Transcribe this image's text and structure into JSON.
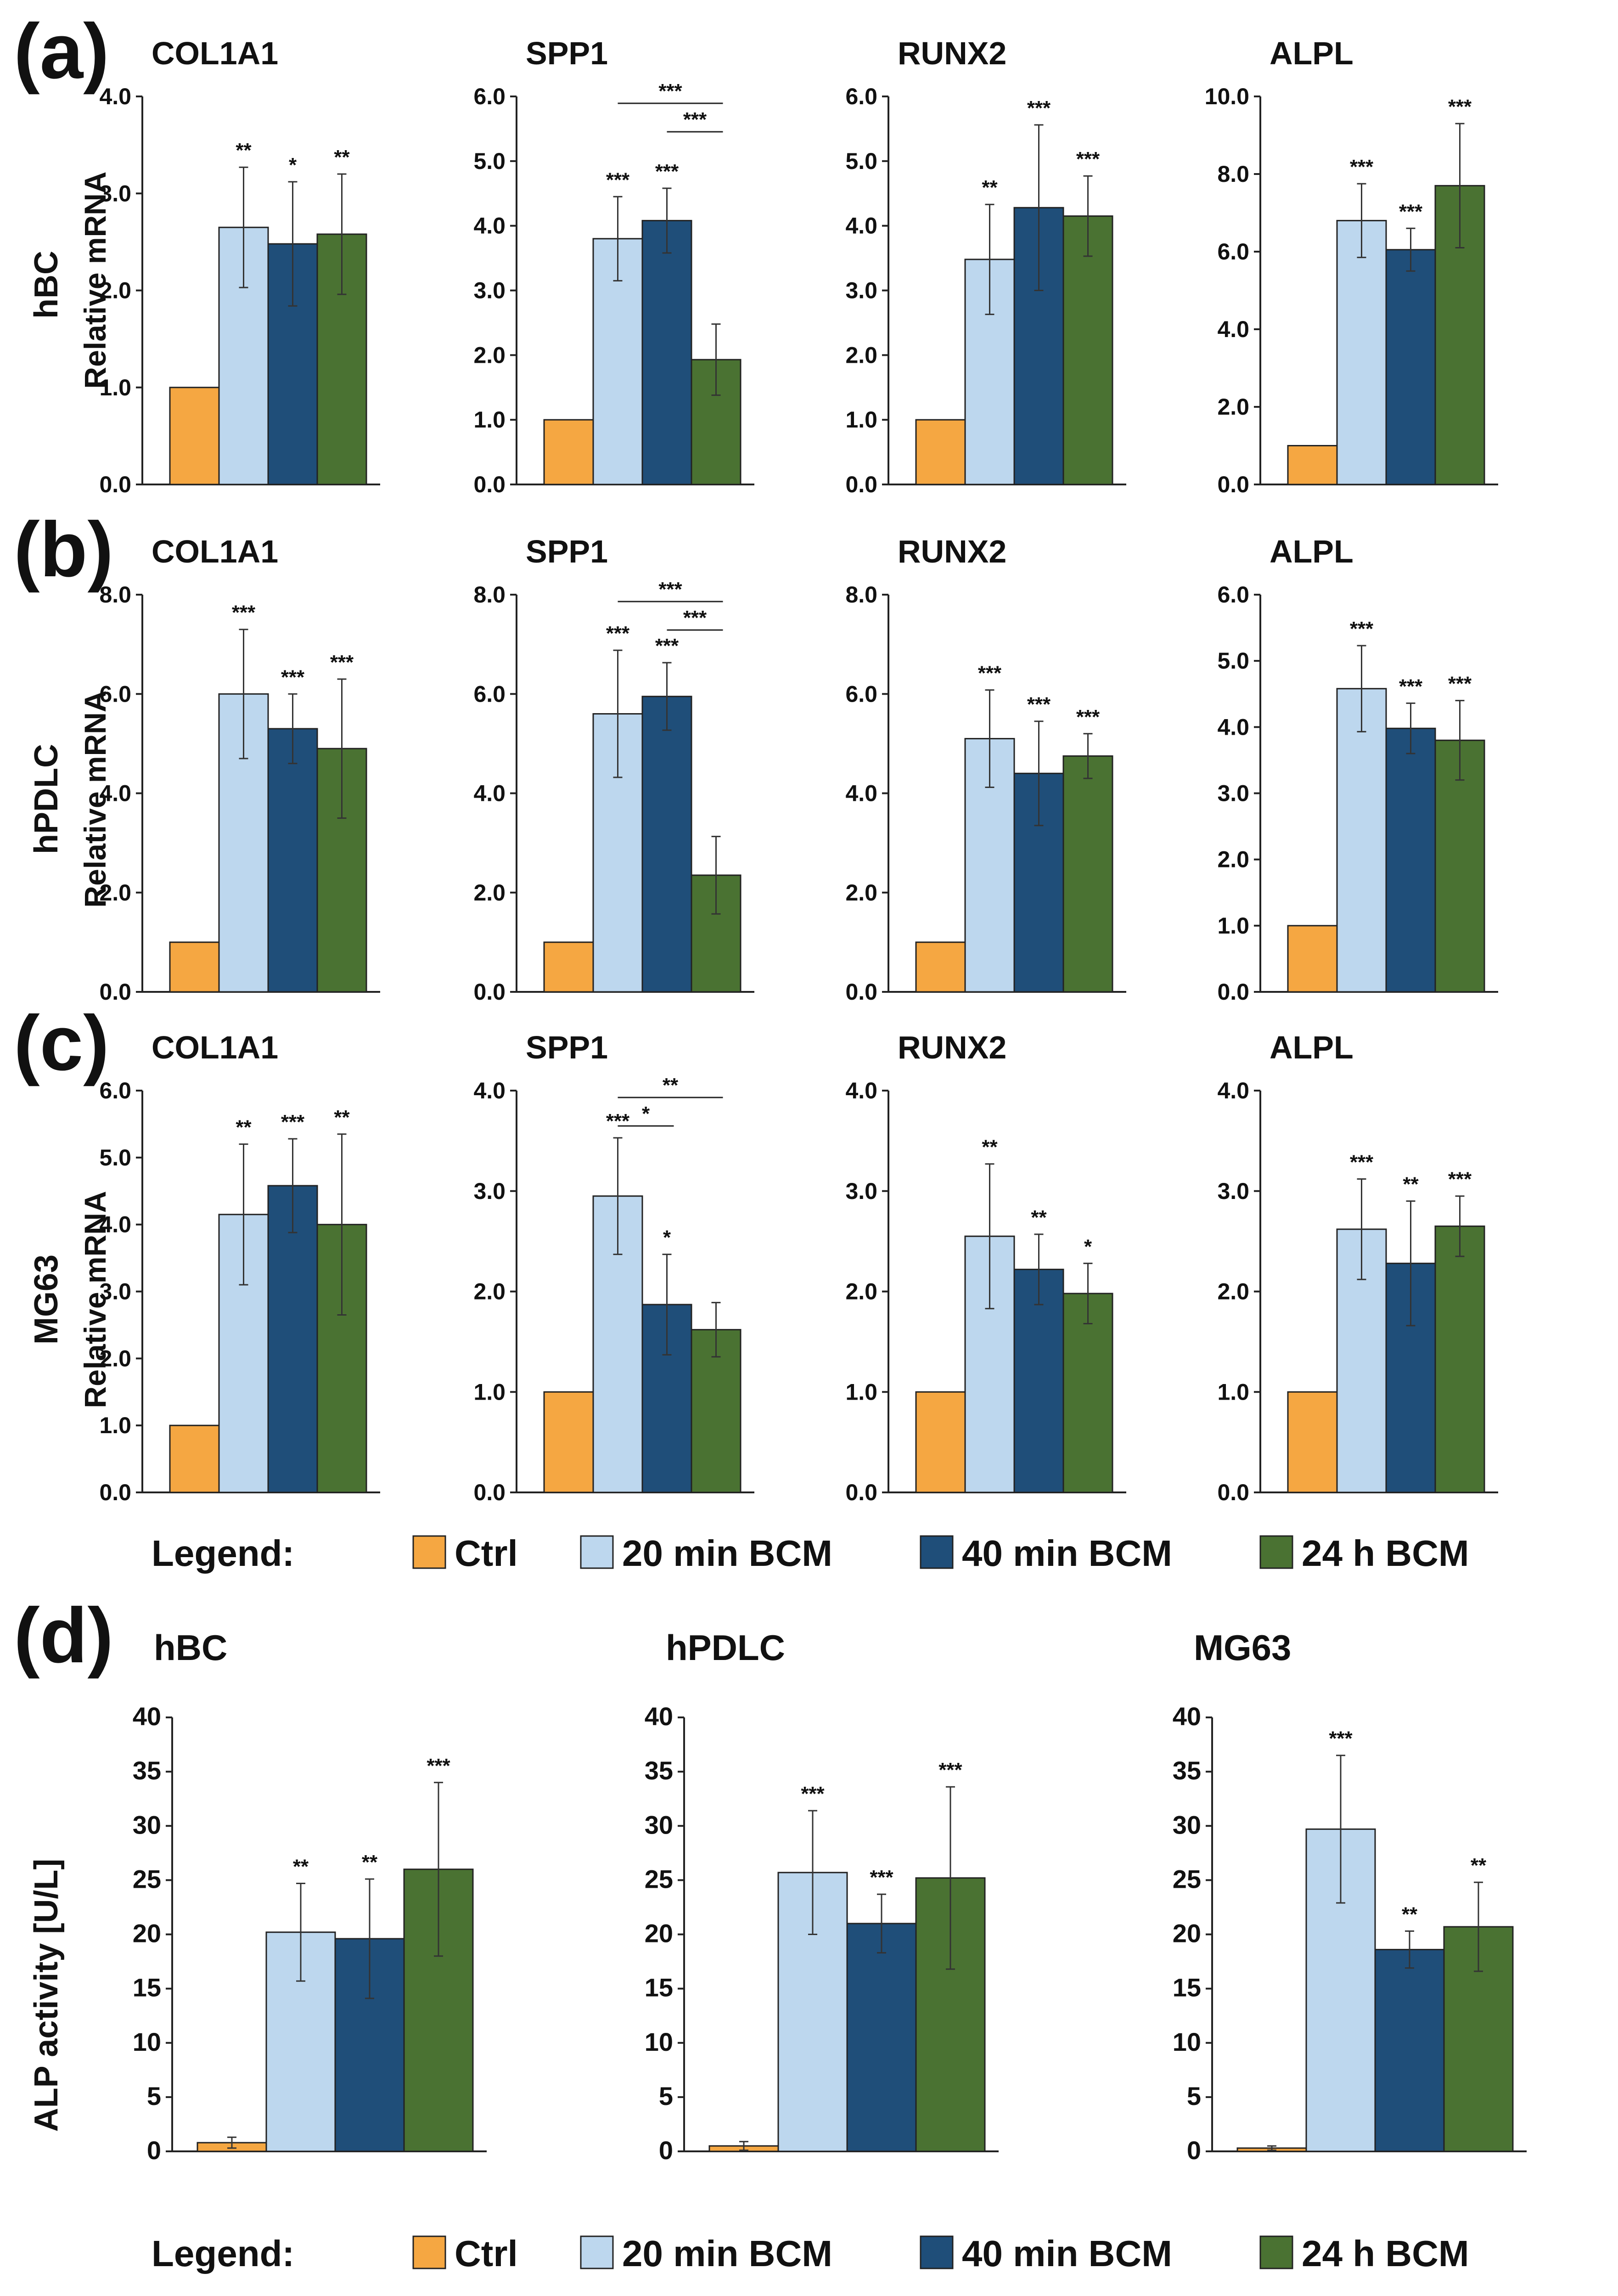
{
  "colors": {
    "Ctrl": "#f5a742",
    "20 min BCM": "#bdd7ee",
    "40 min BCM": "#1f4e79",
    "24 h BCM": "#4a7232",
    "axis": "#222222",
    "bar_edge": "#222222"
  },
  "panels": {
    "a": {
      "letter": "(a)",
      "cell_label": "hBC",
      "ylabel": "Relative mRNA"
    },
    "b": {
      "letter": "(b)",
      "cell_label": "hPDLC",
      "ylabel": "Relative mRNA"
    },
    "c": {
      "letter": "(c)",
      "cell_label": "MG63",
      "ylabel": "Relative mRNA"
    },
    "d": {
      "letter": "(d)",
      "ylabel": "ALP activity [U/L]"
    }
  },
  "legends": [
    {
      "title": "Legend:",
      "entries": [
        "Ctrl",
        "20 min BCM",
        "40 min BCM",
        "24 h BCM"
      ]
    },
    {
      "title": "Legend:",
      "entries": [
        "Ctrl",
        "20 min BCM",
        "40 min BCM",
        "24 h BCM"
      ]
    }
  ],
  "chart_data": [
    {
      "id": "a-col1a1",
      "panel": "a",
      "type": "bar",
      "title": "COL1A1",
      "ylabel": "Relative mRNA",
      "categories": [
        "Ctrl",
        "20 min BCM",
        "40 min BCM",
        "24 h BCM"
      ],
      "values": [
        1.0,
        2.65,
        2.48,
        2.58
      ],
      "errors": [
        0,
        0.62,
        0.64,
        0.62
      ],
      "significance": [
        "",
        "**",
        "*",
        "**"
      ],
      "brackets": [],
      "ylim": [
        0,
        4
      ],
      "ticks": [
        0,
        1,
        2,
        3,
        4
      ],
      "tick_labels": [
        "0.0",
        "1.0",
        "2.0",
        "3.0",
        "4.0"
      ]
    },
    {
      "id": "a-spp1",
      "panel": "a",
      "type": "bar",
      "title": "SPP1",
      "ylabel": "Relative mRNA",
      "categories": [
        "Ctrl",
        "20 min BCM",
        "40 min BCM",
        "24 h BCM"
      ],
      "values": [
        1.0,
        3.8,
        4.08,
        1.93
      ],
      "errors": [
        0,
        0.65,
        0.5,
        0.55
      ],
      "significance": [
        "",
        "***",
        "***",
        ""
      ],
      "brackets": [
        {
          "from": 1,
          "to": 3,
          "label": "***"
        },
        {
          "from": 2,
          "to": 3,
          "label": "***"
        }
      ],
      "ylim": [
        0,
        6
      ],
      "ticks": [
        0,
        1,
        2,
        3,
        4,
        5,
        6
      ],
      "tick_labels": [
        "0.0",
        "1.0",
        "2.0",
        "3.0",
        "4.0",
        "5.0",
        "6.0"
      ]
    },
    {
      "id": "a-runx2",
      "panel": "a",
      "type": "bar",
      "title": "RUNX2",
      "ylabel": "Relative mRNA",
      "categories": [
        "Ctrl",
        "20 min BCM",
        "40 min BCM",
        "24 h BCM"
      ],
      "values": [
        1.0,
        3.48,
        4.28,
        4.15
      ],
      "errors": [
        0,
        0.85,
        1.28,
        0.62
      ],
      "significance": [
        "",
        "**",
        "***",
        "***"
      ],
      "brackets": [],
      "ylim": [
        0,
        6
      ],
      "ticks": [
        0,
        1,
        2,
        3,
        4,
        5,
        6
      ],
      "tick_labels": [
        "0.0",
        "1.0",
        "2.0",
        "3.0",
        "4.0",
        "5.0",
        "6.0"
      ]
    },
    {
      "id": "a-alpl",
      "panel": "a",
      "type": "bar",
      "title": "ALPL",
      "ylabel": "Relative mRNA",
      "categories": [
        "Ctrl",
        "20 min BCM",
        "40 min BCM",
        "24 h BCM"
      ],
      "values": [
        1.0,
        6.8,
        6.05,
        7.7
      ],
      "errors": [
        0,
        0.95,
        0.55,
        1.6
      ],
      "significance": [
        "",
        "***",
        "***",
        "***"
      ],
      "brackets": [],
      "ylim": [
        0,
        10
      ],
      "ticks": [
        0,
        2,
        4,
        6,
        8,
        10
      ],
      "tick_labels": [
        "0.0",
        "2.0",
        "4.0",
        "6.0",
        "8.0",
        "10.0"
      ]
    },
    {
      "id": "b-col1a1",
      "panel": "b",
      "type": "bar",
      "title": "COL1A1",
      "ylabel": "Relative mRNA",
      "categories": [
        "Ctrl",
        "20 min BCM",
        "40 min BCM",
        "24 h BCM"
      ],
      "values": [
        1.0,
        6.0,
        5.3,
        4.9
      ],
      "errors": [
        0,
        1.3,
        0.7,
        1.4
      ],
      "significance": [
        "",
        "***",
        "***",
        "***"
      ],
      "brackets": [],
      "ylim": [
        0,
        8
      ],
      "ticks": [
        0,
        2,
        4,
        6,
        8
      ],
      "tick_labels": [
        "0.0",
        "2.0",
        "4.0",
        "6.0",
        "8.0"
      ]
    },
    {
      "id": "b-spp1",
      "panel": "b",
      "type": "bar",
      "title": "SPP1",
      "ylabel": "Relative mRNA",
      "categories": [
        "Ctrl",
        "20 min BCM",
        "40 min BCM",
        "24 h BCM"
      ],
      "values": [
        1.0,
        5.6,
        5.95,
        2.35
      ],
      "errors": [
        0,
        1.28,
        0.68,
        0.78
      ],
      "significance": [
        "",
        "***",
        "***",
        ""
      ],
      "brackets": [
        {
          "from": 1,
          "to": 3,
          "label": "***"
        },
        {
          "from": 2,
          "to": 3,
          "label": "***"
        }
      ],
      "ylim": [
        0,
        8
      ],
      "ticks": [
        0,
        2,
        4,
        6,
        8
      ],
      "tick_labels": [
        "0.0",
        "2.0",
        "4.0",
        "6.0",
        "8.0"
      ]
    },
    {
      "id": "b-runx2",
      "panel": "b",
      "type": "bar",
      "title": "RUNX2",
      "ylabel": "Relative mRNA",
      "categories": [
        "Ctrl",
        "20 min BCM",
        "40 min BCM",
        "24 h BCM"
      ],
      "values": [
        1.0,
        5.1,
        4.4,
        4.75
      ],
      "errors": [
        0,
        0.98,
        1.05,
        0.45
      ],
      "significance": [
        "",
        "***",
        "***",
        "***"
      ],
      "brackets": [],
      "ylim": [
        0,
        8
      ],
      "ticks": [
        0,
        2,
        4,
        6,
        8
      ],
      "tick_labels": [
        "0.0",
        "2.0",
        "4.0",
        "6.0",
        "8.0"
      ]
    },
    {
      "id": "b-alpl",
      "panel": "b",
      "type": "bar",
      "title": "ALPL",
      "ylabel": "Relative mRNA",
      "categories": [
        "Ctrl",
        "20 min BCM",
        "40 min BCM",
        "24 h BCM"
      ],
      "values": [
        1.0,
        4.58,
        3.98,
        3.8
      ],
      "errors": [
        0,
        0.65,
        0.38,
        0.6
      ],
      "significance": [
        "",
        "***",
        "***",
        "***"
      ],
      "brackets": [],
      "ylim": [
        0,
        6
      ],
      "ticks": [
        0,
        1,
        2,
        3,
        4,
        5,
        6
      ],
      "tick_labels": [
        "0.0",
        "1.0",
        "2.0",
        "3.0",
        "4.0",
        "5.0",
        "6.0"
      ]
    },
    {
      "id": "c-col1a1",
      "panel": "c",
      "type": "bar",
      "title": "COL1A1",
      "ylabel": "Relative mRNA",
      "categories": [
        "Ctrl",
        "20 min BCM",
        "40 min BCM",
        "24 h BCM"
      ],
      "values": [
        1.0,
        4.15,
        4.58,
        4.0
      ],
      "errors": [
        0,
        1.05,
        0.7,
        1.35
      ],
      "significance": [
        "",
        "**",
        "***",
        "**"
      ],
      "brackets": [],
      "ylim": [
        0,
        6
      ],
      "ticks": [
        0,
        1,
        2,
        3,
        4,
        5,
        6
      ],
      "tick_labels": [
        "0.0",
        "1.0",
        "2.0",
        "3.0",
        "4.0",
        "5.0",
        "6.0"
      ]
    },
    {
      "id": "c-spp1",
      "panel": "c",
      "type": "bar",
      "title": "SPP1",
      "ylabel": "Relative mRNA",
      "categories": [
        "Ctrl",
        "20 min BCM",
        "40 min BCM",
        "24 h BCM"
      ],
      "values": [
        1.0,
        2.95,
        1.87,
        1.62
      ],
      "errors": [
        0,
        0.58,
        0.5,
        0.27
      ],
      "significance": [
        "",
        "***",
        "*",
        ""
      ],
      "brackets": [
        {
          "from": 1,
          "to": 3,
          "label": "**"
        },
        {
          "from": 1,
          "to": 2,
          "label": "*"
        }
      ],
      "ylim": [
        0,
        4
      ],
      "ticks": [
        0,
        1,
        2,
        3,
        4
      ],
      "tick_labels": [
        "0.0",
        "1.0",
        "2.0",
        "3.0",
        "4.0"
      ]
    },
    {
      "id": "c-runx2",
      "panel": "c",
      "type": "bar",
      "title": "RUNX2",
      "ylabel": "Relative mRNA",
      "categories": [
        "Ctrl",
        "20 min BCM",
        "40 min BCM",
        "24 h BCM"
      ],
      "values": [
        1.0,
        2.55,
        2.22,
        1.98
      ],
      "errors": [
        0,
        0.72,
        0.35,
        0.3
      ],
      "significance": [
        "",
        "**",
        "**",
        "*"
      ],
      "brackets": [],
      "ylim": [
        0,
        4
      ],
      "ticks": [
        0,
        1,
        2,
        3,
        4
      ],
      "tick_labels": [
        "0.0",
        "1.0",
        "2.0",
        "3.0",
        "4.0"
      ]
    },
    {
      "id": "c-alpl",
      "panel": "c",
      "type": "bar",
      "title": "ALPL",
      "ylabel": "Relative mRNA",
      "categories": [
        "Ctrl",
        "20 min BCM",
        "40 min BCM",
        "24 h BCM"
      ],
      "values": [
        1.0,
        2.62,
        2.28,
        2.65
      ],
      "errors": [
        0,
        0.5,
        0.62,
        0.3
      ],
      "significance": [
        "",
        "***",
        "**",
        "***"
      ],
      "brackets": [],
      "ylim": [
        0,
        4
      ],
      "ticks": [
        0,
        1,
        2,
        3,
        4
      ],
      "tick_labels": [
        "0.0",
        "1.0",
        "2.0",
        "3.0",
        "4.0"
      ]
    },
    {
      "id": "d-hbc",
      "panel": "d",
      "type": "bar",
      "title": "hBC",
      "ylabel": "ALP activity [U/L]",
      "categories": [
        "Ctrl",
        "20 min BCM",
        "40 min BCM",
        "24 h BCM"
      ],
      "values": [
        0.8,
        20.2,
        19.6,
        26.0
      ],
      "errors": [
        0.5,
        4.5,
        5.5,
        8.0
      ],
      "significance": [
        "",
        "**",
        "**",
        "***"
      ],
      "brackets": [],
      "ylim": [
        0,
        40
      ],
      "ticks": [
        0,
        5,
        10,
        15,
        20,
        25,
        30,
        35,
        40
      ],
      "tick_labels": [
        "0",
        "5",
        "10",
        "15",
        "20",
        "25",
        "30",
        "35",
        "40"
      ]
    },
    {
      "id": "d-hpdlc",
      "panel": "d",
      "type": "bar",
      "title": "hPDLC",
      "ylabel": "ALP activity [U/L]",
      "categories": [
        "Ctrl",
        "20 min BCM",
        "40 min BCM",
        "24 h BCM"
      ],
      "values": [
        0.5,
        25.7,
        21.0,
        25.2
      ],
      "errors": [
        0.4,
        5.7,
        2.7,
        8.4
      ],
      "significance": [
        "",
        "***",
        "***",
        "***"
      ],
      "brackets": [],
      "ylim": [
        0,
        40
      ],
      "ticks": [
        0,
        5,
        10,
        15,
        20,
        25,
        30,
        35,
        40
      ],
      "tick_labels": [
        "0",
        "5",
        "10",
        "15",
        "20",
        "25",
        "30",
        "35",
        "40"
      ]
    },
    {
      "id": "d-mg63",
      "panel": "d",
      "type": "bar",
      "title": "MG63",
      "ylabel": "ALP activity [U/L]",
      "categories": [
        "Ctrl",
        "20 min BCM",
        "40 min BCM",
        "24 h BCM"
      ],
      "values": [
        0.3,
        29.7,
        18.6,
        20.7
      ],
      "errors": [
        0.2,
        6.8,
        1.7,
        4.1
      ],
      "significance": [
        "",
        "***",
        "**",
        "**"
      ],
      "brackets": [],
      "ylim": [
        0,
        40
      ],
      "ticks": [
        0,
        5,
        10,
        15,
        20,
        25,
        30,
        35,
        40
      ],
      "tick_labels": [
        "0",
        "5",
        "10",
        "15",
        "20",
        "25",
        "30",
        "35",
        "40"
      ]
    }
  ]
}
